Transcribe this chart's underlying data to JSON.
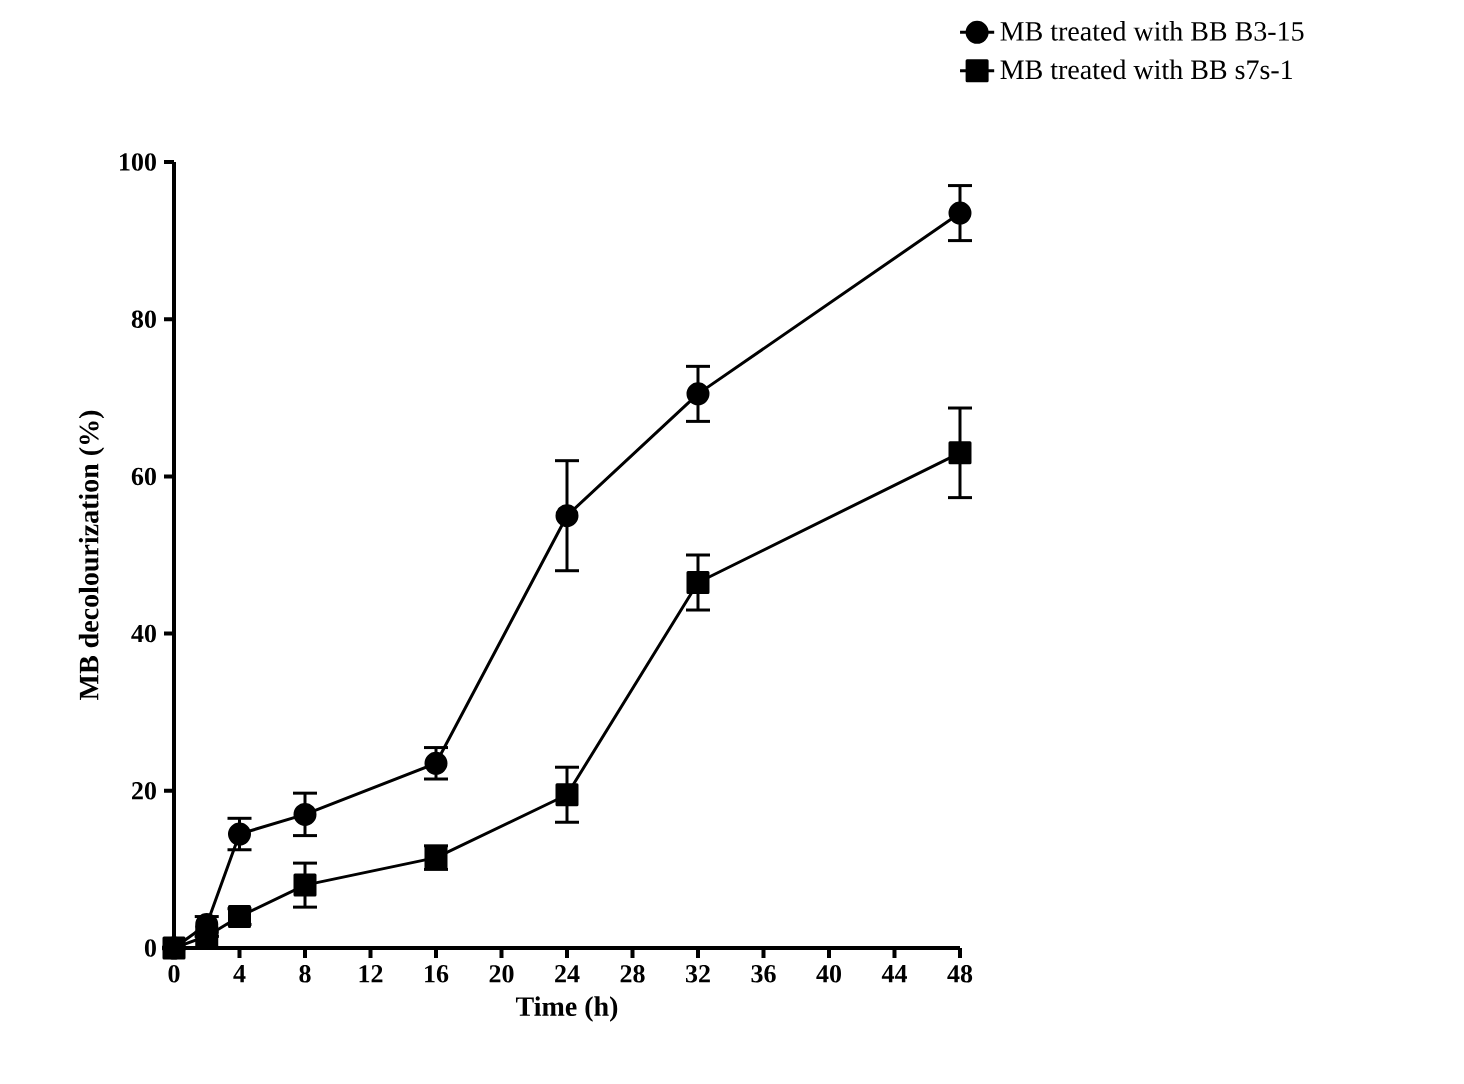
{
  "chart_data": {
    "type": "line",
    "xlabel": "Time (h)",
    "ylabel": "MB decolourization (%)",
    "x": [
      0,
      2,
      4,
      8,
      16,
      24,
      32,
      48
    ],
    "xlim": [
      0,
      48
    ],
    "xticks": [
      0,
      4,
      8,
      12,
      16,
      20,
      24,
      28,
      32,
      36,
      40,
      44,
      48
    ],
    "ylim": [
      0,
      100
    ],
    "yticks": [
      0,
      20,
      40,
      60,
      80,
      100
    ],
    "grid": false,
    "legend": "top right",
    "line_style": "solid",
    "series": [
      {
        "name": "MB treated with BB B3-15",
        "color": "#000000",
        "marker": "circle",
        "values": [
          0,
          3,
          14.5,
          17,
          23.5,
          55,
          70.5,
          93.5
        ],
        "errors": [
          null,
          1,
          2,
          2.7,
          2,
          7,
          3.5,
          3.5
        ]
      },
      {
        "name": "MB treated with BB s7s-1",
        "color": "#000000",
        "marker": "square",
        "values": [
          0,
          1.5,
          4,
          8,
          11.5,
          19.5,
          46.5,
          63
        ],
        "errors": [
          null,
          null,
          1,
          2.8,
          1.5,
          3.5,
          3.5,
          5.7
        ]
      }
    ]
  }
}
